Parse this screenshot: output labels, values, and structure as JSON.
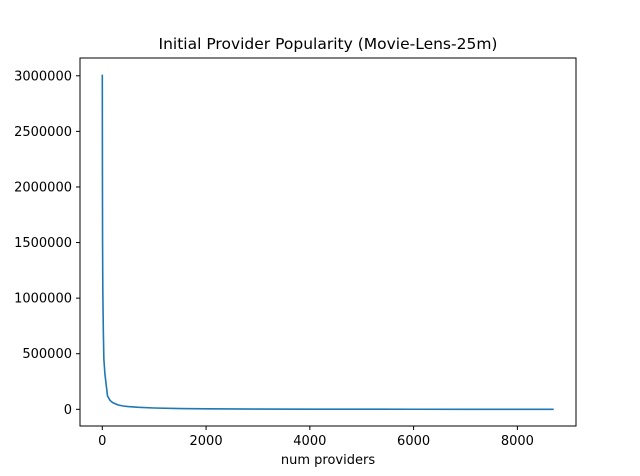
{
  "chart_data": {
    "type": "line",
    "title": "Initial Provider Popularity (Movie-Lens-25m)",
    "xlabel": "num providers",
    "ylabel": "",
    "xlim": [
      -430,
      9130
    ],
    "ylim": [
      -150000,
      3160000
    ],
    "xticks": [
      0,
      2000,
      4000,
      6000,
      8000
    ],
    "yticks": [
      0,
      500000,
      1000000,
      1500000,
      2000000,
      2500000,
      3000000
    ],
    "grid": false,
    "series": [
      {
        "color": "#1f77b4",
        "x": [
          0,
          2,
          5,
          10,
          20,
          30,
          50,
          75,
          100,
          150,
          200,
          300,
          400,
          500,
          700,
          1000,
          1500,
          2000,
          3000,
          4000,
          5000,
          6000,
          7000,
          8000,
          8700
        ],
        "y": [
          3010000,
          2200000,
          1500000,
          1050000,
          700000,
          450000,
          320000,
          220000,
          120000,
          80000,
          60000,
          40000,
          30000,
          25000,
          18000,
          12000,
          7000,
          4500,
          2500,
          1500,
          1000,
          600,
          300,
          100,
          0
        ]
      }
    ]
  }
}
